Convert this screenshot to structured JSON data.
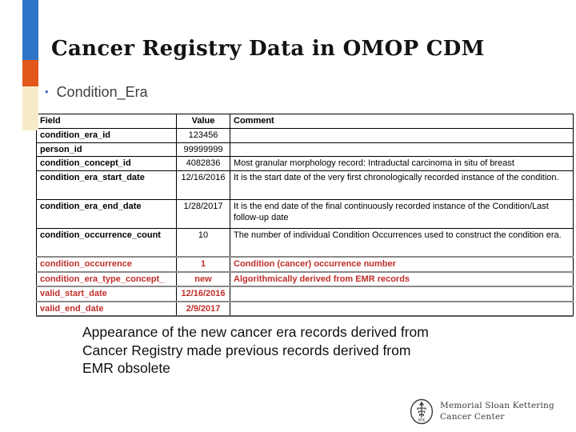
{
  "slide": {
    "title": "Cancer Registry Data in OMOP CDM",
    "bullet": "Condition_Era",
    "caption_lines": [
      "Appearance of the new cancer era records derived from",
      "Cancer Registry made previous records derived from",
      "EMR obsolete"
    ]
  },
  "table": {
    "headers": {
      "field": "Field",
      "value": "Value",
      "comment": "Comment"
    },
    "rows": [
      {
        "field": "condition_era_id",
        "value": "123456",
        "comment": "",
        "red": false,
        "tall": false
      },
      {
        "field": "person_id",
        "value": "99999999",
        "comment": "",
        "red": false,
        "tall": false
      },
      {
        "field": "condition_concept_id",
        "value": "4082836",
        "comment": "Most granular morphology record: Intraductal carcinoma in situ of breast",
        "red": false,
        "tall": false
      },
      {
        "field": "condition_era_start_date",
        "value": "12/16/2016",
        "comment": "It is the start date of the very first chronologically recorded instance of the condition.",
        "red": false,
        "tall": true
      },
      {
        "field": "condition_era_end_date",
        "value": "1/28/2017",
        "comment": "It is the end date of the final continuously recorded instance of the Condition/Last follow-up date",
        "red": false,
        "tall": true
      },
      {
        "field": "condition_occurrence_count",
        "value": "10",
        "comment": "The number of individual Condition Occurrences used to construct the condition era.",
        "red": false,
        "tall": true
      },
      {
        "field": "condition_occurrence",
        "value": "1",
        "comment": "Condition (cancer) occurrence number",
        "red": true,
        "tall": false
      },
      {
        "field": "condition_era_type_concept_",
        "value": "new",
        "comment": "Algorithmically derived from EMR records",
        "red": true,
        "tall": false
      },
      {
        "field": "valid_start_date",
        "value": "12/16/2016",
        "comment": "",
        "red": true,
        "tall": false
      },
      {
        "field": "valid_end_date",
        "value": "2/9/2017",
        "comment": "",
        "red": true,
        "tall": false
      }
    ]
  },
  "footer": {
    "logo_line1": "Memorial Sloan Kettering",
    "logo_line2": "Cancer Center"
  },
  "icons": {
    "bullet": "•"
  },
  "colors": {
    "accent_blue": "#2E75C9",
    "accent_orange": "#E2571B",
    "accent_cream": "#F7EBC7",
    "red_text": "#C12E2A",
    "bullet_blue": "#4472C4"
  }
}
